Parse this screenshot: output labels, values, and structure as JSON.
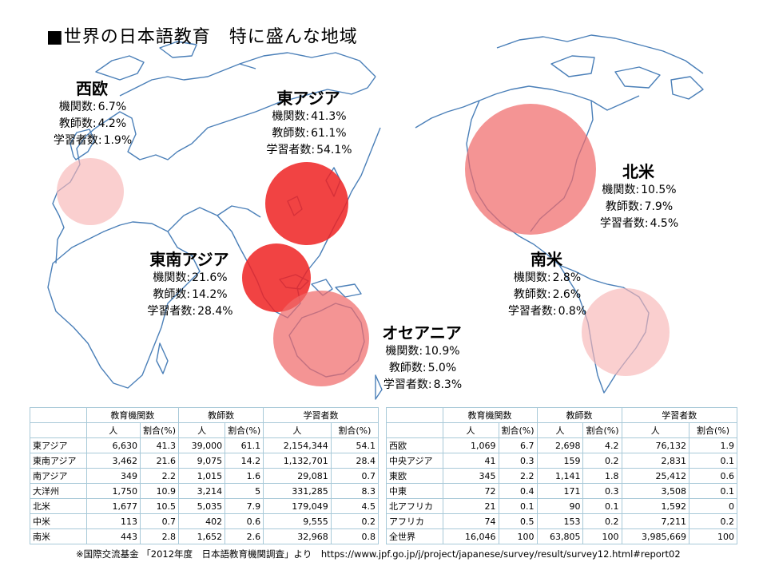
{
  "title": "■世界の日本語教育　特に盛んな地域",
  "colors": {
    "strong": "#ee2222",
    "medium": "#f06b6b",
    "light": "#f7b5b5",
    "map_line": "#4a7fb8",
    "table_border": "#a8c9d8"
  },
  "regions": [
    {
      "name": "西欧",
      "stats": [
        {
          "label": "機関数:",
          "value": "6.7%"
        },
        {
          "label": "教師数:",
          "value": "4.2%"
        },
        {
          "label": "学習者数:",
          "value": "1.9%"
        }
      ]
    },
    {
      "name": "東アジア",
      "stats": [
        {
          "label": "機関数:",
          "value": "41.3%"
        },
        {
          "label": "教師数:",
          "value": "61.1%"
        },
        {
          "label": "学習者数:",
          "value": "54.1%"
        }
      ]
    },
    {
      "name": "北米",
      "stats": [
        {
          "label": "機関数:",
          "value": "10.5%"
        },
        {
          "label": "教師数:",
          "value": "7.9%"
        },
        {
          "label": "学習者数:",
          "value": "4.5%"
        }
      ]
    },
    {
      "name": "東南アジア",
      "stats": [
        {
          "label": "機関数:",
          "value": "21.6%"
        },
        {
          "label": "教師数:",
          "value": "14.2%"
        },
        {
          "label": "学習者数:",
          "value": "28.4%"
        }
      ]
    },
    {
      "name": "南米",
      "stats": [
        {
          "label": "機関数:",
          "value": "2.8%"
        },
        {
          "label": "教師数:",
          "value": "2.6%"
        },
        {
          "label": "学習者数:",
          "value": "0.8%"
        }
      ]
    },
    {
      "name": "オセアニア",
      "stats": [
        {
          "label": "機関数:",
          "value": "10.9%"
        },
        {
          "label": "教師数:",
          "value": "5.0%"
        },
        {
          "label": "学習者数:",
          "value": "8.3%"
        }
      ]
    }
  ],
  "chart_data": {
    "type": "table",
    "column_groups": [
      "教育機関数",
      "教師数",
      "学習者数"
    ],
    "sub_columns": [
      "人",
      "割合(%)"
    ],
    "left_rows": [
      {
        "region": "東アジア",
        "cells": [
          "6,630",
          "41.3",
          "39,000",
          "61.1",
          "2,154,344",
          "54.1"
        ]
      },
      {
        "region": "東南アジア",
        "cells": [
          "3,462",
          "21.6",
          "9,075",
          "14.2",
          "1,132,701",
          "28.4"
        ]
      },
      {
        "region": "南アジア",
        "cells": [
          "349",
          "2.2",
          "1,015",
          "1.6",
          "29,081",
          "0.7"
        ]
      },
      {
        "region": "大洋州",
        "cells": [
          "1,750",
          "10.9",
          "3,214",
          "5",
          "331,285",
          "8.3"
        ]
      },
      {
        "region": "北米",
        "cells": [
          "1,677",
          "10.5",
          "5,035",
          "7.9",
          "179,049",
          "4.5"
        ]
      },
      {
        "region": "中米",
        "cells": [
          "113",
          "0.7",
          "402",
          "0.6",
          "9,555",
          "0.2"
        ]
      },
      {
        "region": "南米",
        "cells": [
          "443",
          "2.8",
          "1,652",
          "2.6",
          "32,968",
          "0.8"
        ]
      }
    ],
    "right_rows": [
      {
        "region": "西欧",
        "cells": [
          "1,069",
          "6.7",
          "2,698",
          "4.2",
          "76,132",
          "1.9"
        ]
      },
      {
        "region": "中央アジア",
        "cells": [
          "41",
          "0.3",
          "159",
          "0.2",
          "2,831",
          "0.1"
        ]
      },
      {
        "region": "東欧",
        "cells": [
          "345",
          "2.2",
          "1,141",
          "1.8",
          "25,412",
          "0.6"
        ]
      },
      {
        "region": "中東",
        "cells": [
          "72",
          "0.4",
          "171",
          "0.3",
          "3,508",
          "0.1"
        ]
      },
      {
        "region": "北アフリカ",
        "cells": [
          "21",
          "0.1",
          "90",
          "0.1",
          "1,592",
          "0"
        ]
      },
      {
        "region": "アフリカ",
        "cells": [
          "74",
          "0.5",
          "153",
          "0.2",
          "7,211",
          "0.2"
        ]
      },
      {
        "region": "全世界",
        "cells": [
          "16,046",
          "100",
          "63,805",
          "100",
          "3,985,669",
          "100"
        ]
      }
    ],
    "bubbles": [
      {
        "region": "西欧",
        "level": "light"
      },
      {
        "region": "東アジア",
        "level": "strong"
      },
      {
        "region": "東南アジア",
        "level": "strong"
      },
      {
        "region": "オセアニア",
        "level": "medium"
      },
      {
        "region": "北米",
        "level": "medium"
      },
      {
        "region": "南米",
        "level": "light"
      }
    ]
  },
  "footnote": "※国際交流基金 「2012年度　日本語教育機関調査」より　https://www.jpf.go.jp/j/project/japanese/survey/result/survey12.html#report02"
}
